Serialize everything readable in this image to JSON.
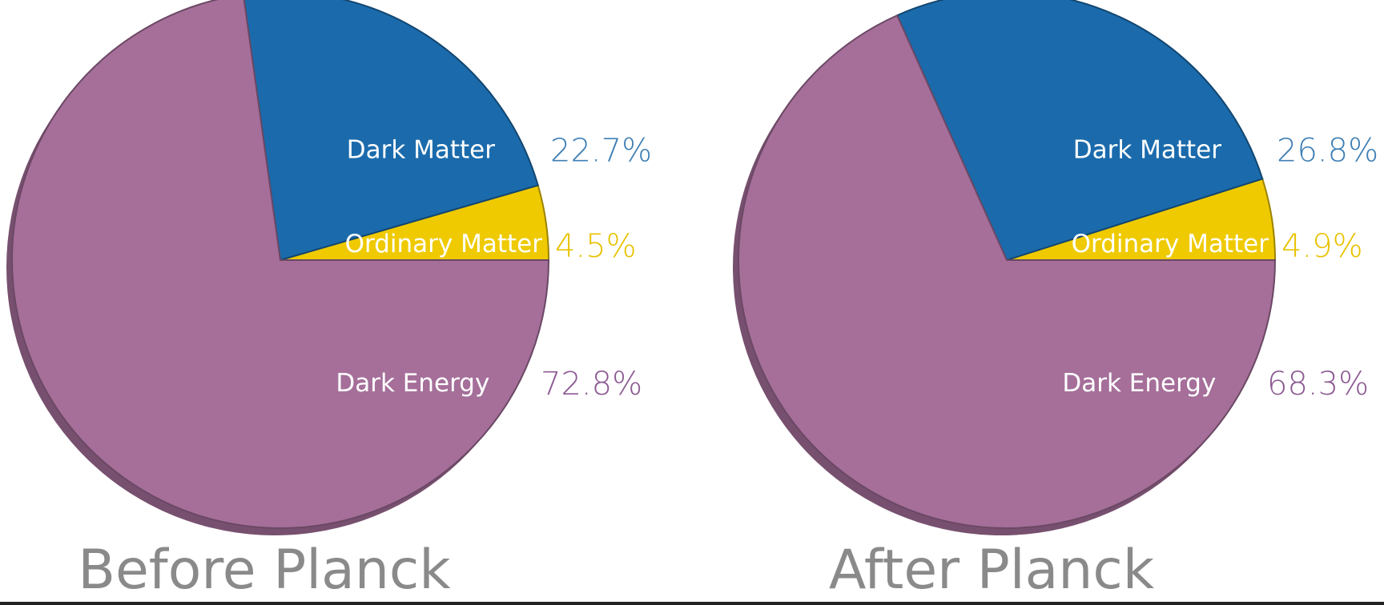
{
  "chart_data": [
    {
      "type": "pie",
      "title": "Before Planck",
      "slices": [
        {
          "label": "Dark Energy",
          "value": 72.8,
          "value_label": "72.8%",
          "color": "#a56f9a",
          "label_color": "#8c5a92"
        },
        {
          "label": "Dark Matter",
          "value": 22.7,
          "value_label": "22.7%",
          "color": "#1b6bac",
          "label_color": "#3f7fb5"
        },
        {
          "label": "Ordinary Matter",
          "value": 4.5,
          "value_label": "4.5%",
          "color": "#efca00",
          "label_color": "#e8c200"
        }
      ]
    },
    {
      "type": "pie",
      "title": "After Planck",
      "slices": [
        {
          "label": "Dark Energy",
          "value": 68.3,
          "value_label": "68.3%",
          "color": "#a56f9a",
          "label_color": "#8c5a92"
        },
        {
          "label": "Dark Matter",
          "value": 26.8,
          "value_label": "26.8%",
          "color": "#1b6bac",
          "label_color": "#3f7fb5"
        },
        {
          "label": "Ordinary Matter",
          "value": 4.9,
          "value_label": "4.9%",
          "color": "#efca00",
          "label_color": "#e8c200"
        }
      ]
    }
  ]
}
